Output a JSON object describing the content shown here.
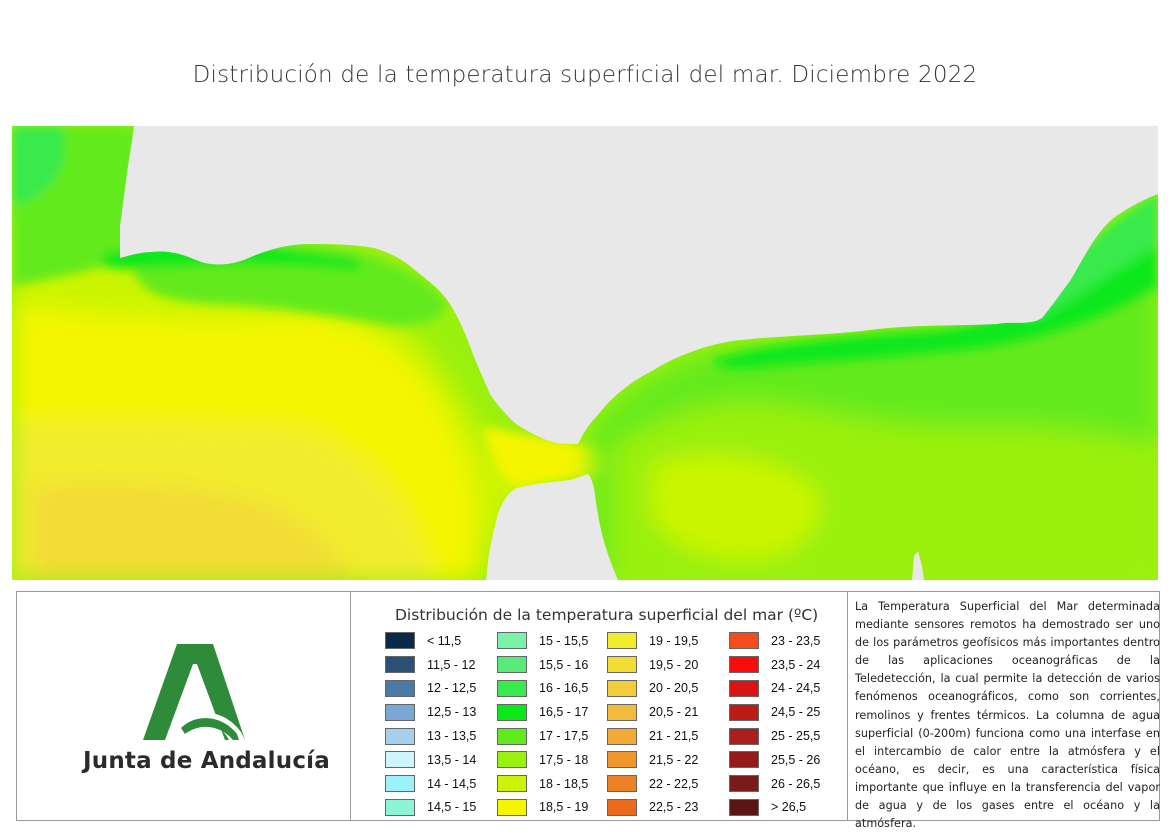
{
  "page": {
    "title": "Distribución de la temperatura superficial del mar. Diciembre 2022"
  },
  "map": {
    "land_color": "#e8e8e8",
    "background_sst_class": "17,5 - 18"
  },
  "organization": {
    "name": "Junta de Andalucía",
    "logo_color": "#2e8b3a"
  },
  "legend": {
    "title": "Distribución de la temperatura superficial del mar (ºC)",
    "columns": [
      [
        {
          "label": "< 11,5",
          "color": "#0b2a4a"
        },
        {
          "label": "11,5 - 12",
          "color": "#2b5178"
        },
        {
          "label": "12 - 12,5",
          "color": "#4a7aa6"
        },
        {
          "label": "12,5 - 13",
          "color": "#79a9d3"
        },
        {
          "label": "13 - 13,5",
          "color": "#a6d0ea"
        },
        {
          "label": "13,5 - 14",
          "color": "#cdf5fb"
        },
        {
          "label": "14 - 14,5",
          "color": "#9ef0fb"
        },
        {
          "label": "14,5 - 15",
          "color": "#8cf5d4"
        }
      ],
      [
        {
          "label": "15 - 15,5",
          "color": "#7af2a9"
        },
        {
          "label": "15,5 - 16",
          "color": "#59ea79"
        },
        {
          "label": "16 - 16,5",
          "color": "#38ea4b"
        },
        {
          "label": "16,5 - 17",
          "color": "#0ae81a"
        },
        {
          "label": "17 - 17,5",
          "color": "#63ea1c"
        },
        {
          "label": "17,5 - 18",
          "color": "#9af00e"
        },
        {
          "label": "18 - 18,5",
          "color": "#ccf500"
        },
        {
          "label": "18,5 - 19",
          "color": "#f5f500"
        }
      ],
      [
        {
          "label": "19 - 19,5",
          "color": "#f2ec2f"
        },
        {
          "label": "19,5 - 20",
          "color": "#f2dc36"
        },
        {
          "label": "20 - 20,5",
          "color": "#f2cc3a"
        },
        {
          "label": "20,5 - 21",
          "color": "#f2bc3c"
        },
        {
          "label": "21 - 21,5",
          "color": "#f2ab34"
        },
        {
          "label": "21,5 - 22",
          "color": "#ef972b"
        },
        {
          "label": "22 - 22,5",
          "color": "#ec8126"
        },
        {
          "label": "22,5 - 23",
          "color": "#ec6a1c"
        }
      ],
      [
        {
          "label": "23 - 23,5",
          "color": "#f44c1c"
        },
        {
          "label": "23,5 - 24",
          "color": "#fa0a0a"
        },
        {
          "label": "24 - 24,5",
          "color": "#d91414"
        },
        {
          "label": "24,5 - 25",
          "color": "#be1a16"
        },
        {
          "label": "25 - 25,5",
          "color": "#aa1e1c"
        },
        {
          "label": "25,5 - 26",
          "color": "#951b1b"
        },
        {
          "label": "26 - 26,5",
          "color": "#7a1a1a"
        },
        {
          "label": "> 26,5",
          "color": "#5c1515"
        }
      ]
    ]
  },
  "description": {
    "text": "La Temperatura Superficial del Mar determinada mediante sensores remotos ha demostrado ser uno de los parámetros geofísicos más importantes dentro de las aplicaciones oceanográficas de la Teledetección, la cual permite la detección de varios fenómenos oceanográficos, como son corrientes, remolinos y frentes térmicos. La columna de agua superficial (0-200m) funciona como una interfase en el intercambio de calor entre la atmósfera y el océano, es decir, es una característica física importante que influye en la transferencia del vapor de agua y de los gases entre el océano y la atmósfera."
  }
}
